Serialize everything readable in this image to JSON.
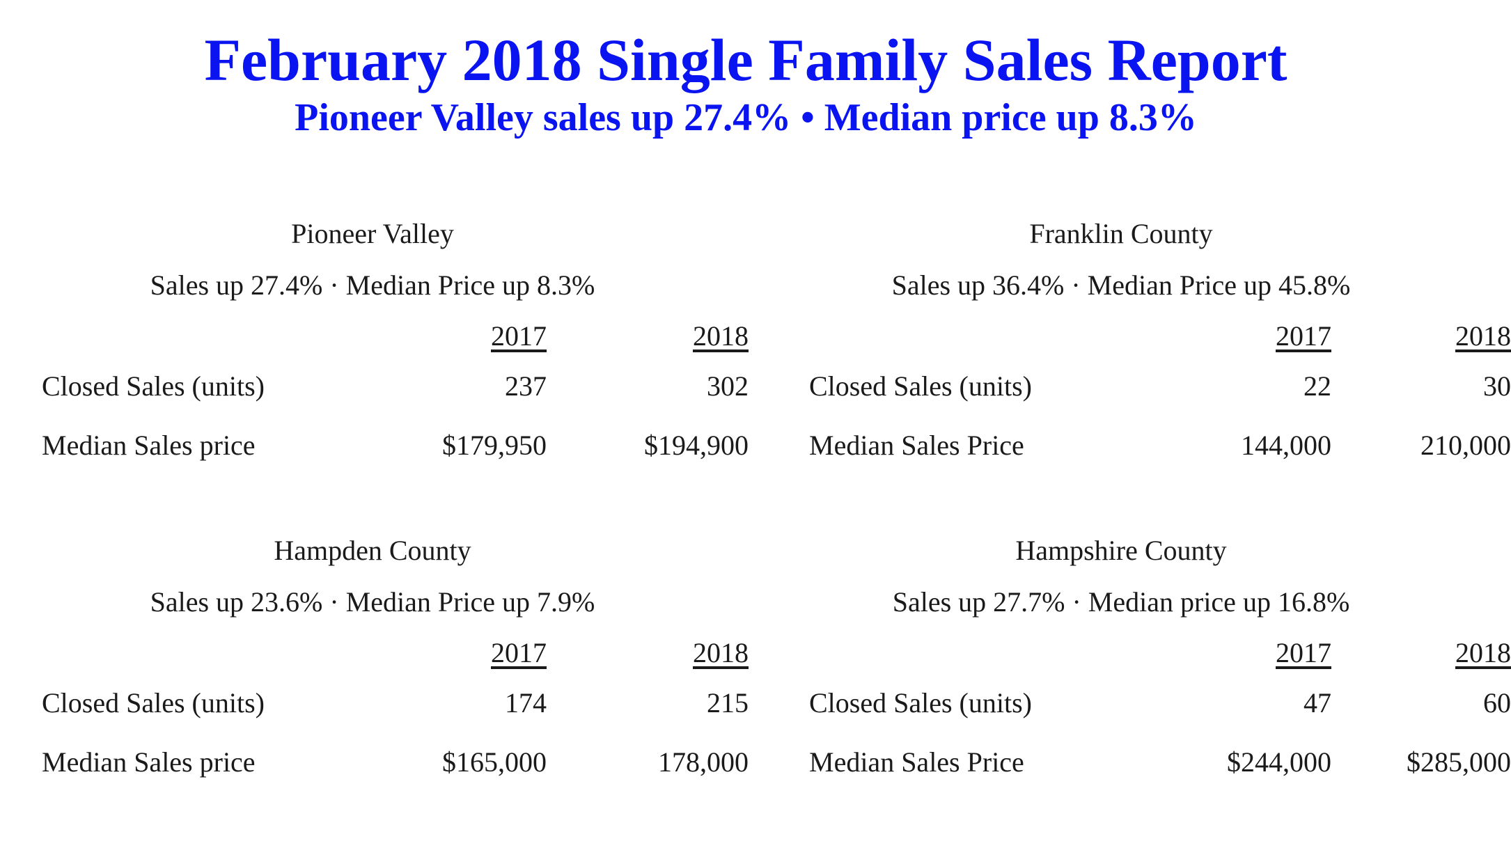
{
  "title": "February 2018 Single Family Sales Report",
  "subtitle": "Pioneer Valley sales up 27.4% • Median price up 8.3%",
  "title_color": "#0a14f0",
  "year_a": "2017",
  "year_b": "2018",
  "panels": {
    "pioneer_valley": {
      "name": "Pioneer Valley",
      "summary": "Sales up 27.4% · Median Price up 8.3%",
      "closed_label": "Closed Sales (units)",
      "closed_2017": "237",
      "closed_2018": "302",
      "median_label": "Median Sales price",
      "median_2017": "$179,950",
      "median_2018": "$194,900"
    },
    "franklin": {
      "name": "Franklin County",
      "summary": "Sales up 36.4% · Median Price up 45.8%",
      "closed_label": "Closed Sales (units)",
      "closed_2017": "22",
      "closed_2018": "30",
      "median_label": "Median Sales Price",
      "median_2017": "144,000",
      "median_2018": "210,000"
    },
    "hampden": {
      "name": "Hampden County",
      "summary": "Sales up 23.6% · Median Price up 7.9%",
      "closed_label": "Closed Sales (units)",
      "closed_2017": "174",
      "closed_2018": "215",
      "median_label": "Median Sales price",
      "median_2017": "$165,000",
      "median_2018": "178,000"
    },
    "hampshire": {
      "name": "Hampshire County",
      "summary": "Sales up 27.7% · Median price up 16.8%",
      "closed_label": "Closed Sales (units)",
      "closed_2017": "47",
      "closed_2018": "60",
      "median_label": "Median Sales Price",
      "median_2017": "$244,000",
      "median_2018": "$285,000"
    }
  }
}
